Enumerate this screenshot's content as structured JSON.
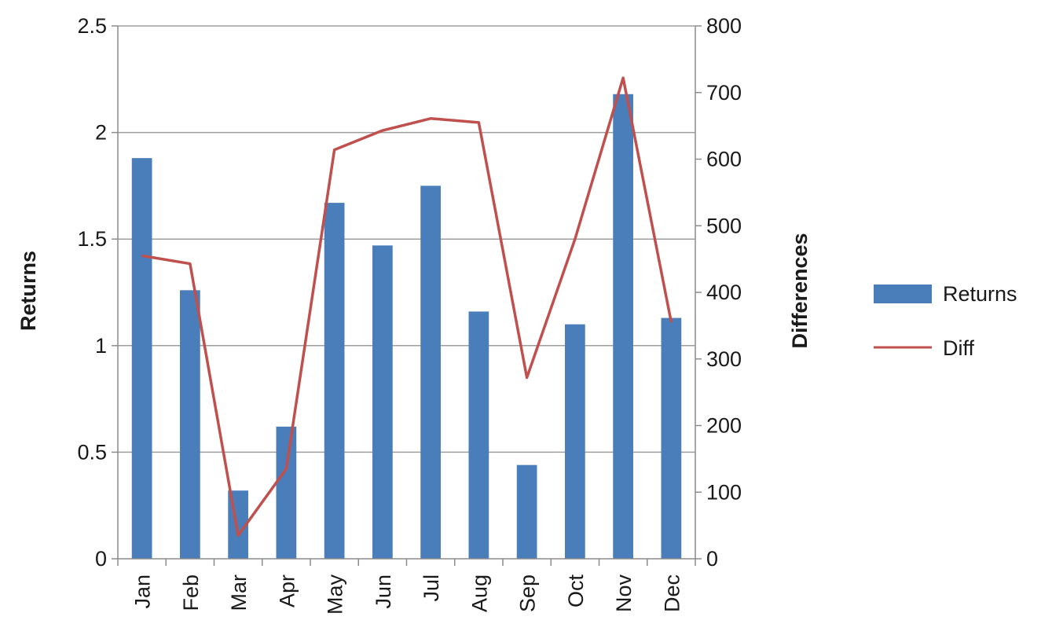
{
  "chart_data": {
    "type": "bar",
    "title": "",
    "categories": [
      "Jan",
      "Feb",
      "Mar",
      "Apr",
      "May",
      "Jun",
      "Jul",
      "Aug",
      "Sep",
      "Oct",
      "Nov",
      "Dec"
    ],
    "series": [
      {
        "name": "Returns",
        "type": "bar",
        "axis": "left",
        "color": "#4a7ebb",
        "values": [
          1.88,
          1.26,
          0.32,
          0.62,
          1.67,
          1.47,
          1.75,
          1.16,
          0.44,
          1.1,
          2.18,
          1.13
        ]
      },
      {
        "name": "Diff",
        "type": "line",
        "axis": "right",
        "color": "#c0504d",
        "values": [
          455,
          443,
          35,
          135,
          614,
          643,
          661,
          655,
          272,
          480,
          722,
          355
        ]
      }
    ],
    "ylabel": "Returns",
    "ylim": [
      0,
      2.5
    ],
    "yticks": [
      "0",
      "0.5",
      "1",
      "1.5",
      "2",
      "2.5"
    ],
    "y2label": "Differences",
    "y2lim": [
      0,
      800
    ],
    "y2ticks": [
      "0",
      "100",
      "200",
      "300",
      "400",
      "500",
      "600",
      "700",
      "800"
    ],
    "grid": true,
    "legend_position": "right"
  }
}
